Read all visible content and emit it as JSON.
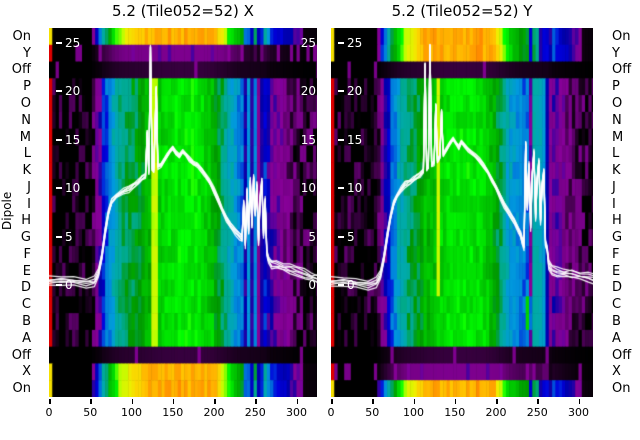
{
  "titles": {
    "left": "5.2 (Tile052=52) X",
    "right": "5.2 (Tile052=52) Y"
  },
  "labels": {
    "dipole": "Dipole"
  },
  "row_labels": [
    "On",
    "Y",
    "Off",
    "P",
    "O",
    "N",
    "M",
    "L",
    "K",
    "J",
    "I",
    "H",
    "G",
    "F",
    "E",
    "D",
    "C",
    "B",
    "A",
    "Off",
    "X",
    "On"
  ],
  "inner_ticks": {
    "values": [
      "25",
      "20",
      "15",
      "10",
      "5",
      "0"
    ]
  },
  "x_ticks": [
    "0",
    "50",
    "100",
    "150",
    "200",
    "250",
    "300"
  ],
  "colors": {
    "background": "#ffffff",
    "text": "#000000",
    "inner_tick_text": "#ffffff",
    "trace": "#ffffff"
  },
  "chart_data": {
    "type": "heatmap",
    "title_left": "5.2 (Tile052=52) X",
    "title_right": "5.2 (Tile052=52) Y",
    "x_axis": {
      "ticks": [
        0,
        50,
        100,
        150,
        200,
        250,
        300
      ],
      "range": [
        0,
        325
      ]
    },
    "overlay_value_axis": {
      "ticks": [
        25,
        20,
        15,
        10,
        5,
        0
      ],
      "range": [
        -11.5,
        26.5
      ]
    },
    "y_categories": [
      "On",
      "Y",
      "Off",
      "P",
      "O",
      "N",
      "M",
      "L",
      "K",
      "J",
      "I",
      "H",
      "G",
      "F",
      "E",
      "D",
      "C",
      "B",
      "A",
      "Off",
      "X",
      "On"
    ],
    "colormap_name": "nipy_spectral",
    "colormap_stops": [
      [
        0.0,
        "#000000"
      ],
      [
        0.05,
        "#770088"
      ],
      [
        0.1,
        "#880099"
      ],
      [
        0.15,
        "#0000aa"
      ],
      [
        0.2,
        "#0000dd"
      ],
      [
        0.25,
        "#0077dd"
      ],
      [
        0.3,
        "#0099dd"
      ],
      [
        0.35,
        "#00aaaa"
      ],
      [
        0.4,
        "#00aa88"
      ],
      [
        0.45,
        "#009900"
      ],
      [
        0.5,
        "#00bb00"
      ],
      [
        0.55,
        "#00dd00"
      ],
      [
        0.6,
        "#00ff00"
      ],
      [
        0.65,
        "#bbff00"
      ],
      [
        0.7,
        "#eeee00"
      ],
      [
        0.75,
        "#ffcc00"
      ],
      [
        0.8,
        "#ff9900"
      ],
      [
        0.85,
        "#ff0000"
      ],
      [
        0.9,
        "#dd0000"
      ],
      [
        0.95,
        "#cc0000"
      ],
      [
        1.0,
        "#cccccc"
      ]
    ],
    "panels": [
      {
        "id": "X",
        "row_types": [
          "bright",
          "faint",
          "off",
          "body",
          "body",
          "body",
          "body",
          "body",
          "body",
          "body",
          "body",
          "body",
          "body",
          "body",
          "body",
          "body",
          "body",
          "body",
          "body",
          "off",
          "bright",
          "bright"
        ],
        "profile": [
          [
            0,
            0
          ],
          [
            52,
            0
          ],
          [
            56,
            0.07
          ],
          [
            62,
            0.12
          ],
          [
            66,
            0.2
          ],
          [
            72,
            0.26
          ],
          [
            78,
            0.33
          ],
          [
            86,
            0.39
          ],
          [
            95,
            0.42
          ],
          [
            110,
            0.45
          ],
          [
            125,
            0.5
          ],
          [
            140,
            0.55
          ],
          [
            160,
            0.57
          ],
          [
            180,
            0.57
          ],
          [
            195,
            0.52
          ],
          [
            205,
            0.45
          ],
          [
            215,
            0.38
          ],
          [
            225,
            0.3
          ],
          [
            235,
            0.26
          ],
          [
            245,
            0.24
          ],
          [
            255,
            0.22
          ],
          [
            262,
            0.2
          ],
          [
            268,
            0.12
          ],
          [
            278,
            0.09
          ],
          [
            290,
            0.06
          ],
          [
            300,
            0.03
          ],
          [
            310,
            0.015
          ],
          [
            328,
            0.01
          ]
        ],
        "stripes": [
          {
            "x": [
              0,
              2
            ],
            "sliver": true
          },
          {
            "x": [
              116,
              119
            ],
            "rows": "body",
            "set": 0.5
          },
          {
            "x": [
              127,
              130
            ],
            "rows": "body",
            "set": 0.66
          },
          {
            "x": [
              195,
              197
            ],
            "rows": [
              17,
              18
            ],
            "set": 0.55
          },
          {
            "x": [
              238,
              241
            ],
            "rows": "all",
            "mul": 0.55
          },
          {
            "x": [
              242,
              245
            ],
            "rows": "body",
            "set": 0.3
          },
          {
            "x": [
              246,
              248
            ],
            "rows": "all",
            "mul": 0.45
          },
          {
            "x": [
              249,
              251
            ],
            "rows": "body",
            "set": 0.27
          },
          {
            "x": [
              252,
              255
            ],
            "rows": "all",
            "mul": 0.4
          },
          {
            "x": [
              256,
              258
            ],
            "rows": "body",
            "set": 0.26
          },
          {
            "x": [
              258,
              260
            ],
            "rows": "all",
            "mul": 0.55
          }
        ],
        "trace": [
          [
            0,
            0.5
          ],
          [
            15,
            0.5
          ],
          [
            30,
            0.4
          ],
          [
            45,
            0.3
          ],
          [
            55,
            0.4
          ],
          [
            60,
            1.2
          ],
          [
            64,
            3
          ],
          [
            68,
            5.5
          ],
          [
            72,
            7.5
          ],
          [
            76,
            8.6
          ],
          [
            82,
            9.2
          ],
          [
            90,
            9.7
          ],
          [
            97,
            9.9
          ],
          [
            103,
            10.3
          ],
          [
            108,
            10.6
          ],
          [
            113,
            11.1
          ],
          [
            117,
            11.3
          ],
          [
            119,
            15.8
          ],
          [
            121,
            11.6
          ],
          [
            123,
            24.6
          ],
          [
            125,
            12.0
          ],
          [
            127,
            11.8
          ],
          [
            130,
            20.4
          ],
          [
            132,
            12.2
          ],
          [
            136,
            12.4
          ],
          [
            139,
            12.8
          ],
          [
            143,
            13.3
          ],
          [
            147,
            13.9
          ],
          [
            150,
            14.2
          ],
          [
            154,
            13.6
          ],
          [
            158,
            13.3
          ],
          [
            162,
            13.8
          ],
          [
            166,
            13.5
          ],
          [
            170,
            13.0
          ],
          [
            175,
            12.6
          ],
          [
            180,
            12.4
          ],
          [
            185,
            11.9
          ],
          [
            190,
            11.3
          ],
          [
            195,
            10.6
          ],
          [
            200,
            9.8
          ],
          [
            205,
            8.8
          ],
          [
            210,
            7.8
          ],
          [
            215,
            6.9
          ],
          [
            220,
            6.2
          ],
          [
            226,
            5.6
          ],
          [
            231,
            5.1
          ],
          [
            234,
            4.8
          ],
          [
            236,
            8.5
          ],
          [
            238,
            4.2
          ],
          [
            240,
            9.8
          ],
          [
            242,
            5.5
          ],
          [
            244,
            10.8
          ],
          [
            246,
            6.2
          ],
          [
            248,
            11.2
          ],
          [
            250,
            7.4
          ],
          [
            252,
            10.4
          ],
          [
            254,
            4.4
          ],
          [
            256,
            9.2
          ],
          [
            258,
            10.8
          ],
          [
            260,
            5.2
          ],
          [
            262,
            8.8
          ],
          [
            264,
            3.4
          ],
          [
            266,
            2.6
          ],
          [
            270,
            2.2
          ],
          [
            276,
            2.0
          ],
          [
            284,
            1.9
          ],
          [
            292,
            1.7
          ],
          [
            300,
            1.5
          ],
          [
            310,
            1.2
          ],
          [
            318,
            0.9
          ],
          [
            325,
            0.7
          ]
        ]
      },
      {
        "id": "Y",
        "row_types": [
          "bright",
          "bright",
          "off",
          "body",
          "body",
          "body",
          "body",
          "body",
          "body",
          "body",
          "body",
          "body",
          "body",
          "body",
          "body",
          "body",
          "body",
          "body",
          "body",
          "off",
          "faint",
          "bright"
        ],
        "profile": [
          [
            0,
            0
          ],
          [
            56,
            0
          ],
          [
            60,
            0.07
          ],
          [
            66,
            0.14
          ],
          [
            72,
            0.22
          ],
          [
            78,
            0.28
          ],
          [
            84,
            0.35
          ],
          [
            92,
            0.4
          ],
          [
            105,
            0.44
          ],
          [
            120,
            0.5
          ],
          [
            140,
            0.56
          ],
          [
            165,
            0.57
          ],
          [
            185,
            0.55
          ],
          [
            195,
            0.5
          ],
          [
            205,
            0.42
          ],
          [
            215,
            0.33
          ],
          [
            225,
            0.28
          ],
          [
            235,
            0.26
          ],
          [
            243,
            0.24
          ],
          [
            262,
            0.22
          ],
          [
            268,
            0.12
          ],
          [
            280,
            0.08
          ],
          [
            292,
            0.05
          ],
          [
            302,
            0.025
          ],
          [
            312,
            0.012
          ],
          [
            328,
            0.01
          ]
        ],
        "stripes": [
          {
            "x": [
              0,
              2
            ],
            "sliver": true
          },
          {
            "x": [
              113,
              116
            ],
            "rows": [
              10,
              18
            ],
            "set": 0.52
          },
          {
            "x": [
              128,
              131
            ],
            "rows": [
              3,
              15
            ],
            "set": 0.67
          },
          {
            "x": [
              239,
              241
            ],
            "rows": [
              16,
              17
            ],
            "set": 0.55
          },
          {
            "x": [
              240,
              243
            ],
            "rows": "all",
            "mul": 0.45
          },
          {
            "x": [
              244,
              252
            ],
            "rows": "body",
            "set": 0.35
          },
          {
            "x": [
              252,
              254
            ],
            "rows": "all",
            "mul": 0.35
          },
          {
            "x": [
              254,
              258
            ],
            "rows": "body",
            "set": 0.34
          },
          {
            "x": [
              258,
              259
            ],
            "rows": "all",
            "mul": 0.5
          },
          {
            "x": [
              259,
              262
            ],
            "rows": "body",
            "set": 0.31
          },
          {
            "x": [
              263,
              266
            ],
            "rows": "all",
            "mul": 0.5
          }
        ],
        "trace": [
          [
            0,
            0.4
          ],
          [
            15,
            0.4
          ],
          [
            30,
            0.2
          ],
          [
            45,
            0.1
          ],
          [
            55,
            0.3
          ],
          [
            60,
            1
          ],
          [
            64,
            2.8
          ],
          [
            68,
            5
          ],
          [
            72,
            7
          ],
          [
            76,
            8.4
          ],
          [
            80,
            9.2
          ],
          [
            85,
            9.9
          ],
          [
            90,
            10.4
          ],
          [
            95,
            10.6
          ],
          [
            100,
            10.9
          ],
          [
            104,
            11.2
          ],
          [
            108,
            11.4
          ],
          [
            112,
            11.8
          ],
          [
            114,
            22.8
          ],
          [
            116,
            12.0
          ],
          [
            118,
            12.2
          ],
          [
            120,
            24.7
          ],
          [
            122,
            12.4
          ],
          [
            125,
            12.6
          ],
          [
            127,
            18.6
          ],
          [
            129,
            12.8
          ],
          [
            132,
            13.2
          ],
          [
            134,
            18.0
          ],
          [
            136,
            13.5
          ],
          [
            140,
            14.0
          ],
          [
            144,
            14.6
          ],
          [
            148,
            15.1
          ],
          [
            152,
            14.6
          ],
          [
            155,
            14.2
          ],
          [
            158,
            14.8
          ],
          [
            162,
            14.4
          ],
          [
            166,
            14.0
          ],
          [
            170,
            13.7
          ],
          [
            175,
            13.3
          ],
          [
            180,
            12.9
          ],
          [
            185,
            12.3
          ],
          [
            190,
            11.7
          ],
          [
            195,
            10.9
          ],
          [
            200,
            10.1
          ],
          [
            205,
            9.2
          ],
          [
            210,
            8.3
          ],
          [
            216,
            7.4
          ],
          [
            222,
            6.6
          ],
          [
            227,
            5.8
          ],
          [
            230,
            5.2
          ],
          [
            232,
            4.4
          ],
          [
            234,
            4.0
          ],
          [
            236,
            14.7
          ],
          [
            238,
            8
          ],
          [
            240,
            12.5
          ],
          [
            242,
            6
          ],
          [
            244,
            11.5
          ],
          [
            246,
            13.8
          ],
          [
            248,
            7
          ],
          [
            250,
            11
          ],
          [
            252,
            12.8
          ],
          [
            254,
            6.5
          ],
          [
            256,
            10.5
          ],
          [
            258,
            11.8
          ],
          [
            260,
            4.2
          ],
          [
            262,
            3.8
          ],
          [
            264,
            2.1
          ],
          [
            268,
            1.6
          ],
          [
            274,
            1.4
          ],
          [
            282,
            1.3
          ],
          [
            292,
            1.2
          ],
          [
            302,
            1.0
          ],
          [
            312,
            0.8
          ],
          [
            322,
            0.6
          ]
        ]
      }
    ]
  }
}
